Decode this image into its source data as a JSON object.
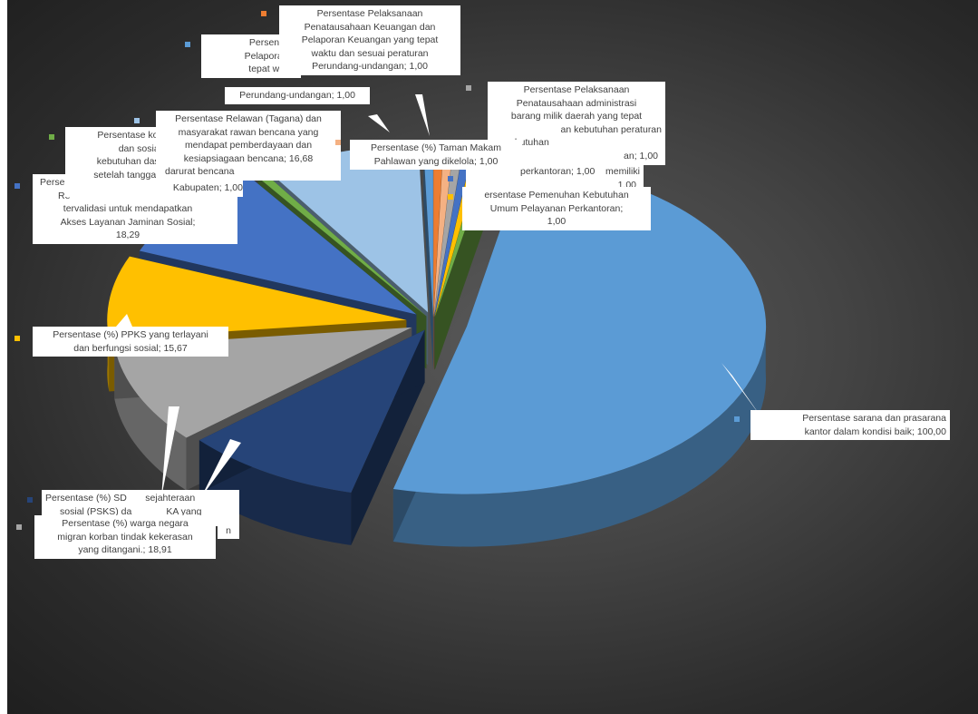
{
  "chart_data": {
    "type": "pie",
    "title": "",
    "three_d": true,
    "exploded": true,
    "legend": "none",
    "data_labels": "category; value",
    "slices": [
      {
        "label": "Persentase sarana dan prasarana kantor  dalam kondisi baik; 100,00",
        "category": "Persentase sarana dan prasarana kantor  dalam kondisi baik",
        "value": 100.0,
        "color": "#5b9bd5"
      },
      {
        "label": "Persentase (%) SDM kesejahteraan sosial (PSKS) dan LKS yang ...",
        "category": "Persentase (%) SDM kesejahteraan sosial (PSKS) dan LKS yang ...",
        "value": 18.91,
        "color": "#264478"
      },
      {
        "label": "Persentase (%) warga negara migran korban tindak kekerasan yang ditangani.; 18,91",
        "category": "Persentase (%) warga negara migran korban tindak kekerasan yang ditangani.",
        "value": 18.91,
        "color": "#a5a5a5"
      },
      {
        "label": "Persentase (%) PPKS yang terlayani dan berfungsi sosial; 15,67",
        "category": "Persentase (%) PPKS yang terlayani dan berfungsi sosial",
        "value": 15.67,
        "color": "#ffc000"
      },
      {
        "label": "Persentase ... Rumah Tangga ... tervalidasi untuk mendapatkan Akses Layanan Jaminan Sosial; 18,29",
        "category": "Persentase Rumah Tangga tervalidasi untuk mendapatkan Akses Layanan Jaminan Sosial",
        "value": 18.29,
        "color": "#4472c4"
      },
      {
        "label": "Persentase korban bencana ... dan sosial ... kebutuhan dasar ... setelah tanggap darurat bencana Kabupaten; 1,00",
        "category": "Persentase korban bencana dan sosial kebutuhan dasar setelah tanggap darurat bencana Kabupaten",
        "value": 1.0,
        "color": "#70ad47"
      },
      {
        "label": "Persentase Relawan (Tagana) dan masyarakat rawan bencana yang mendapat pemberdayaan dan kesiapsiagaan bencana; 16,68",
        "category": "Persentase Relawan (Tagana) dan masyarakat rawan bencana yang mendapat pemberdayaan dan kesiapsiagaan bencana",
        "value": 16.68,
        "color": "#9dc3e6"
      },
      {
        "label": "Persentase Pelaporan C... tepat waktu ... Perundang-undangan; 1,00",
        "category": "Persentase Pelaporan Capaian Kinerja tepat waktu Perundang-undangan",
        "value": 1.0,
        "color": "#5b9bd5"
      },
      {
        "label": "Persentase Pelaksanaan Penatausahaan Keuangan dan Pelaporan Keuangan yang tepat waktu dan sesuai peraturan Perundang-undangan; 1,00",
        "category": "Persentase Pelaksanaan Penatausahaan Keuangan dan Pelaporan Keuangan yang tepat waktu dan sesuai peraturan Perundang-undangan",
        "value": 1.0,
        "color": "#ed7d31"
      },
      {
        "label": "Persentase (%) Taman Makam Pahlawan yang dikelola; 1,00",
        "category": "Persentase (%) Taman Makam Pahlawan yang dikelola",
        "value": 1.0,
        "color": "#f4b183"
      },
      {
        "label": "Persentase Pelaksanaan Penatausahaan administrasi barang milik daerah yang tepat ... kebutuhan peraturan ...; 1,00",
        "category": "Persentase Pelaksanaan Penatausahaan administrasi barang milik daerah",
        "value": 1.0,
        "color": "#a5a5a5"
      },
      {
        "label": "... kebutuhan ... perkantoran; 1,00",
        "category": "kebutuhan perkantoran",
        "value": 1.0,
        "color": "#4472c4"
      },
      {
        "label": "Persentase Pemenuhan Kebutuhan Umum Pelayanan Perkantoran; 1,00",
        "category": "Persentase Pemenuhan Kebutuhan Umum Pelayanan Perkantoran",
        "value": 1.0,
        "color": "#ffc000"
      },
      {
        "label": "... memiliki ...",
        "category": "memiliki",
        "value": 1.0,
        "color": "#70ad47"
      }
    ]
  },
  "labels": {
    "sarana": [
      "Persentase sarana dan prasarana",
      "kantor  dalam kondisi baik; 100,00"
    ],
    "sdm": [
      "Persentase (%) SD",
      "sejahteraan",
      "sosial (PSKS) da",
      "KA yang",
      "n"
    ],
    "migran": [
      "Persentase (%) warga negara",
      "migran korban tindak kekerasan",
      "yang ditangani.; 18,91"
    ],
    "ppks": [
      "Persentase (%) PPKS yang terlayani",
      "dan berfungsi sosial; 15,67"
    ],
    "jamsos": [
      "Perse",
      "Re",
      "tervalidasi untuk mendapatkan",
      "Akses Layanan Jaminan Sosial;",
      "18,29"
    ],
    "korban": [
      "Persentase kor",
      "dan sosial",
      "kebutuhan dasi",
      "setelah tanggap",
      "Kabupaten; 1,00"
    ],
    "relawan": [
      "Persentase Relawan (Tagana) dan",
      "masyarakat rawan bencana yang",
      "mendapat pemberdayaan dan",
      "kesiapsiagaan bencana; 16,68",
      "darurat bencana"
    ],
    "pelaporan": [
      "Persentase",
      "Pelaporan C",
      "tepat waktu",
      "Perundang-undangan; 1,00"
    ],
    "keuangan": [
      "Persentase Pelaksanaan",
      "Penatausahaan Keuangan dan",
      "Pelaporan Keuangan yang tepat",
      "waktu dan sesuai peraturan",
      "Perundang-undangan; 1,00"
    ],
    "taman": [
      "Persentase (%) Taman Makam",
      "Pahlawan yang dikelola; 1,00"
    ],
    "bmd": [
      "Persentase  Pelaksanaan",
      "Penatausahaan  administrasi",
      "barang milik daerah yang tepat",
      "an  kebutuhan peraturan",
      "ebutuhan",
      "an; 1,00"
    ],
    "perkantoran": [
      "perkantoran;  1,00",
      "memiliki",
      "1,00"
    ],
    "pelayanan": [
      "ersentase  Pemenuhan  Kebutuhan",
      "Umum Pelayanan Perkantoran;",
      "1,00"
    ]
  }
}
